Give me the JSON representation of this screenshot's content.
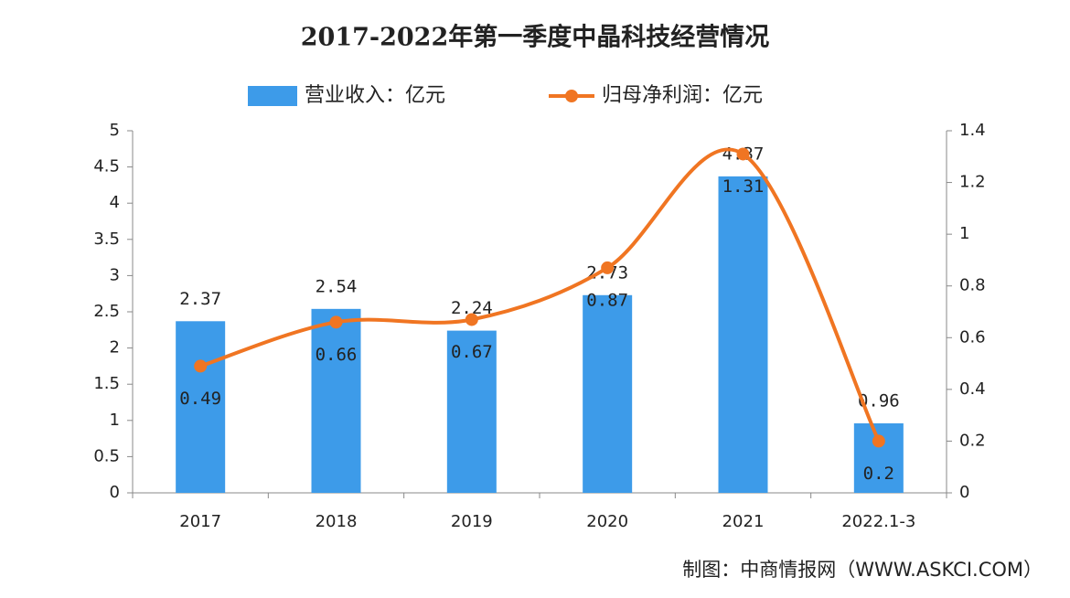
{
  "chart_data": {
    "type": "combo",
    "title": "2017-2022年第一季度中晶科技经营情况",
    "categories": [
      "2017",
      "2018",
      "2019",
      "2020",
      "2021",
      "2022.1-3"
    ],
    "series": [
      {
        "name": "营业收入：亿元",
        "type": "bar",
        "color": "#3d9be9",
        "values": [
          2.37,
          2.54,
          2.24,
          2.73,
          4.37,
          0.96
        ]
      },
      {
        "name": "归母净利润：亿元",
        "type": "line",
        "axis": "y2",
        "color": "#f07522",
        "values": [
          0.49,
          0.66,
          0.67,
          0.87,
          1.31,
          0.2
        ]
      }
    ],
    "ylim": [
      0,
      5
    ],
    "yticks": [
      0,
      0.5,
      1,
      1.5,
      2,
      2.5,
      3,
      3.5,
      4,
      4.5,
      5
    ],
    "y2lim": [
      0,
      1.4
    ],
    "y2ticks": [
      0,
      0.2,
      0.4,
      0.6,
      0.8,
      1,
      1.2,
      1.4
    ],
    "source": "制图：中商情报网（WWW.ASKCI.COM）"
  }
}
